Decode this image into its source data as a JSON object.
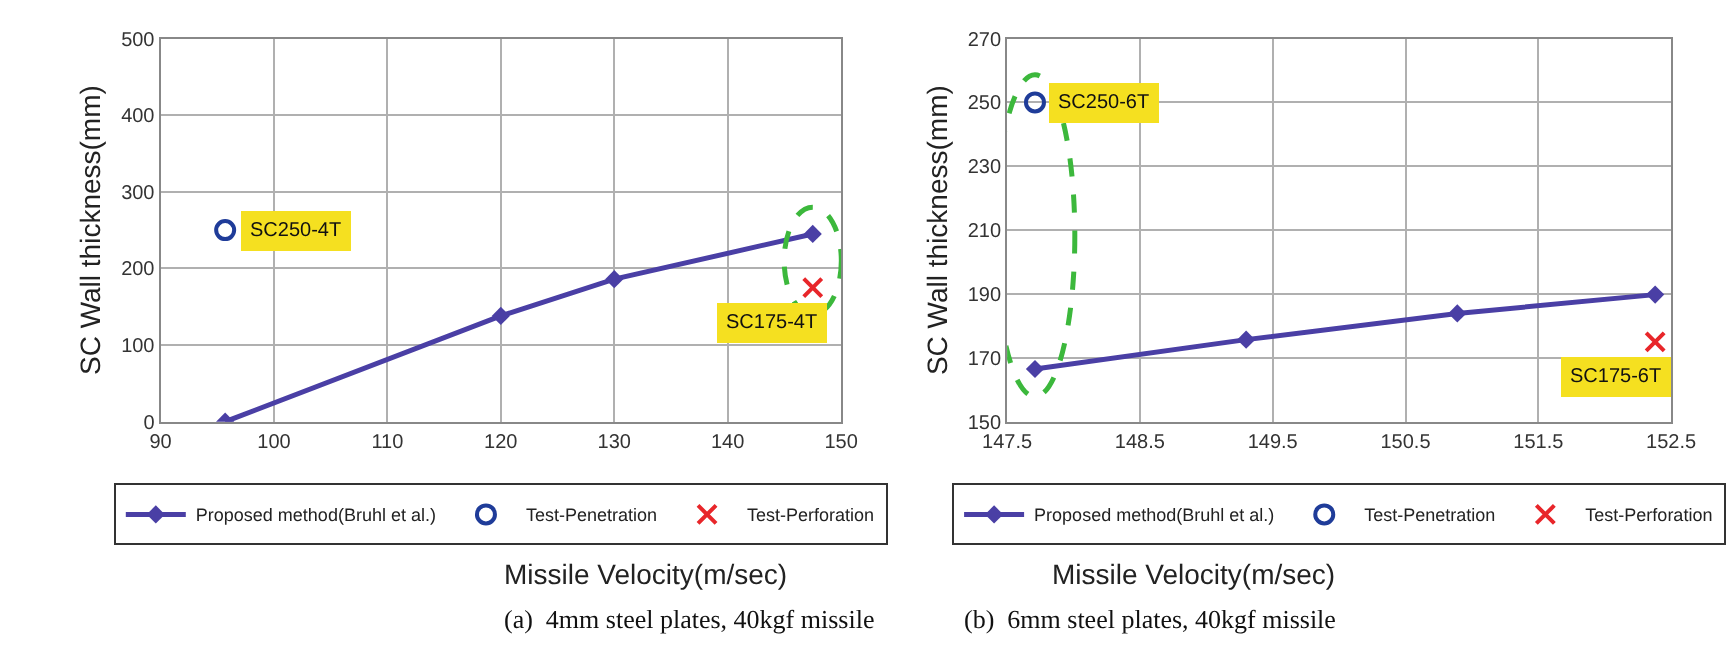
{
  "chart_data": [
    {
      "type": "line",
      "xlabel": "Missile Velocity(m/sec)",
      "ylabel": "SC Wall thickness(mm)",
      "xlim": [
        90,
        150
      ],
      "xticks": [
        90,
        100,
        110,
        120,
        130,
        140,
        150
      ],
      "ylim": [
        0,
        500
      ],
      "yticks": [
        0,
        100,
        200,
        300,
        400,
        500
      ],
      "grid": true,
      "legend": "bottom",
      "series": [
        {
          "name": "Proposed method(Bruhl et al.)",
          "marker": "diamond",
          "color": "#4a3fa5",
          "x": [
            95.7,
            120,
            130,
            147.5
          ],
          "values": [
            0,
            138,
            186,
            245
          ]
        },
        {
          "name": "Test-Penetration",
          "type": "scatter",
          "marker": "circle",
          "color": "#1f3c99",
          "x": [
            95.7
          ],
          "values": [
            250
          ]
        },
        {
          "name": "Test-Perforation",
          "type": "scatter",
          "marker": "cross",
          "color": "#e8262a",
          "x": [
            147.5
          ],
          "values": [
            175
          ]
        }
      ],
      "annotations": [
        {
          "text": "SC250-4T",
          "x": 95.7,
          "y": 250
        },
        {
          "text": "SC175-4T",
          "x": 147.5,
          "y": 175
        },
        "(a)  4mm steel plates, 40kgf missile"
      ]
    },
    {
      "type": "line",
      "xlabel": "Missile Velocity(m/sec)",
      "ylabel": "SC Wall thickness(mm)",
      "xlim": [
        147.5,
        152.5
      ],
      "xticks": [
        147.5,
        148.5,
        149.5,
        150.5,
        151.5,
        152.5
      ],
      "ylim": [
        150,
        270
      ],
      "yticks": [
        150,
        170,
        190,
        210,
        230,
        250,
        270
      ],
      "grid": true,
      "legend": "bottom",
      "series": [
        {
          "name": "Proposed method(Bruhl et al.)",
          "marker": "diamond",
          "color": "#4a3fa5",
          "x": [
            147.71,
            149.3,
            150.89,
            152.38
          ],
          "values": [
            166.5,
            175.7,
            183.9,
            189.8
          ]
        },
        {
          "name": "Test-Penetration",
          "type": "scatter",
          "marker": "circle",
          "color": "#1f3c99",
          "x": [
            147.71
          ],
          "values": [
            250
          ]
        },
        {
          "name": "Test-Perforation",
          "type": "scatter",
          "marker": "cross",
          "color": "#e8262a",
          "x": [
            152.38
          ],
          "values": [
            175
          ]
        }
      ],
      "annotations": [
        {
          "text": "SC250-6T",
          "x": 147.71,
          "y": 250
        },
        {
          "text": "SC175-6T",
          "x": 152.38,
          "y": 175
        },
        "(b)  6mm steel plates, 40kgf missile"
      ]
    }
  ]
}
